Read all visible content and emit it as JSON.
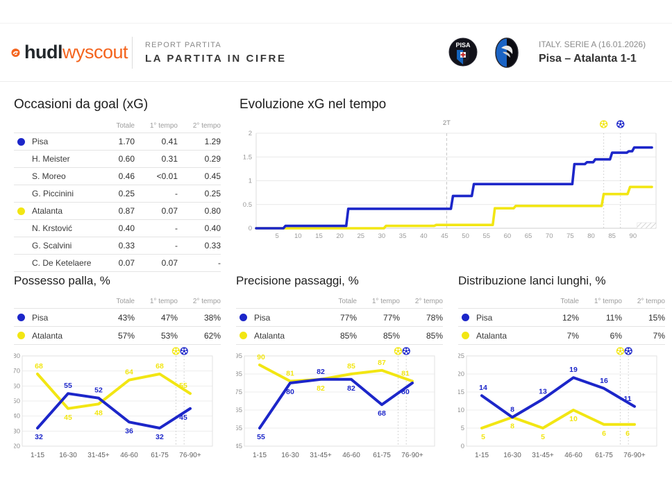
{
  "colors": {
    "pisa": "#1c26c9",
    "atalanta": "#f2e613",
    "brand_orange": "#f4641e"
  },
  "header": {
    "brand": {
      "hudl": "hudl",
      "wyscout": "wyscout"
    },
    "report_label": "REPORT PARTITA",
    "report_title": "LA PARTITA IN CIFRE",
    "competition": "ITALY. SERIE A (16.01.2026)",
    "match": "Pisa – Atalanta 1-1",
    "home_badge_text": "PISA"
  },
  "sections": {
    "xg": {
      "title": "Occasioni da goal (xG)",
      "columns": [
        "Totale",
        "1° tempo",
        "2° tempo"
      ],
      "rows": [
        {
          "name": "Pisa",
          "team": "pisa",
          "values": [
            "1.70",
            "0.41",
            "1.29"
          ]
        },
        {
          "name": "H. Meister",
          "values": [
            "0.60",
            "0.31",
            "0.29"
          ]
        },
        {
          "name": "S. Moreo",
          "values": [
            "0.46",
            "<0.01",
            "0.45"
          ]
        },
        {
          "name": "G. Piccinini",
          "values": [
            "0.25",
            "-",
            "0.25"
          ]
        },
        {
          "name": "Atalanta",
          "team": "atalanta",
          "values": [
            "0.87",
            "0.07",
            "0.80"
          ]
        },
        {
          "name": "N. Krstović",
          "values": [
            "0.40",
            "-",
            "0.40"
          ]
        },
        {
          "name": "G. Scalvini",
          "values": [
            "0.33",
            "-",
            "0.33"
          ]
        },
        {
          "name": "C. De Ketelaere",
          "values": [
            "0.07",
            "0.07",
            "-"
          ]
        }
      ]
    },
    "possesso": {
      "columns": [
        "Totale",
        "1° tempo",
        "2° tempo"
      ],
      "rows": [
        {
          "name": "Pisa",
          "team": "pisa",
          "values": [
            "43%",
            "47%",
            "38%"
          ]
        },
        {
          "name": "Atalanta",
          "team": "atalanta",
          "values": [
            "57%",
            "53%",
            "62%"
          ]
        }
      ]
    },
    "precisione": {
      "columns": [
        "Totale",
        "1° tempo",
        "2° tempo"
      ],
      "rows": [
        {
          "name": "Pisa",
          "team": "pisa",
          "values": [
            "77%",
            "77%",
            "78%"
          ]
        },
        {
          "name": "Atalanta",
          "team": "atalanta",
          "values": [
            "85%",
            "85%",
            "85%"
          ]
        }
      ]
    },
    "lanci": {
      "columns": [
        "Totale",
        "1° tempo",
        "2° tempo"
      ],
      "rows": [
        {
          "name": "Pisa",
          "team": "pisa",
          "values": [
            "12%",
            "11%",
            "15%"
          ]
        },
        {
          "name": "Atalanta",
          "team": "atalanta",
          "values": [
            "7%",
            "6%",
            "7%"
          ]
        }
      ]
    }
  },
  "chart_data": [
    {
      "id": "xg_evolution",
      "type": "line",
      "variant": "step",
      "title": "Evoluzione xG nel tempo",
      "xlim": [
        0,
        95.5
      ],
      "x_ticks": [
        5,
        10,
        15,
        20,
        25,
        30,
        35,
        40,
        45,
        50,
        55,
        60,
        65,
        70,
        75,
        80,
        85,
        90
      ],
      "ylim": [
        0,
        2
      ],
      "y_ticks": [
        0,
        0.5,
        1,
        1.5,
        2
      ],
      "grid": true,
      "halftime_marker": {
        "minute": 45.5,
        "label": "2T"
      },
      "goal_markers": [
        {
          "minute": 83,
          "team": "atalanta"
        },
        {
          "minute": 87,
          "team": "pisa"
        }
      ],
      "extra_time_hatch_start": 91,
      "series": [
        {
          "name": "Pisa",
          "team": "pisa",
          "points": [
            [
              0,
              0
            ],
            [
              6.5,
              0
            ],
            [
              7,
              0.05
            ],
            [
              21.5,
              0.05
            ],
            [
              22,
              0.41
            ],
            [
              46.5,
              0.41
            ],
            [
              47,
              0.68
            ],
            [
              51.5,
              0.68
            ],
            [
              52,
              0.93
            ],
            [
              75.5,
              0.93
            ],
            [
              76,
              1.35
            ],
            [
              78.5,
              1.35
            ],
            [
              79,
              1.39
            ],
            [
              80.5,
              1.39
            ],
            [
              81,
              1.45
            ],
            [
              84.5,
              1.45
            ],
            [
              85,
              1.59
            ],
            [
              88.5,
              1.59
            ],
            [
              89,
              1.62
            ],
            [
              89.8,
              1.62
            ],
            [
              90.3,
              1.7
            ],
            [
              94.5,
              1.7
            ]
          ]
        },
        {
          "name": "Atalanta",
          "team": "atalanta",
          "points": [
            [
              0,
              0
            ],
            [
              30.5,
              0
            ],
            [
              31,
              0.05
            ],
            [
              42.5,
              0.05
            ],
            [
              43,
              0.07
            ],
            [
              56.5,
              0.07
            ],
            [
              57,
              0.42
            ],
            [
              61.5,
              0.42
            ],
            [
              62,
              0.47
            ],
            [
              82.5,
              0.47
            ],
            [
              83,
              0.72
            ],
            [
              88.7,
              0.72
            ],
            [
              89.3,
              0.87
            ],
            [
              94.5,
              0.87
            ]
          ]
        }
      ]
    },
    {
      "id": "possession_by_interval",
      "type": "line",
      "title": "Possesso palla, %",
      "categories": [
        "1-15",
        "16-30",
        "31-45+",
        "46-60",
        "61-75",
        "76-90+"
      ],
      "ylim": [
        20,
        80
      ],
      "y_ticks": [
        20,
        30,
        40,
        50,
        60,
        70,
        80
      ],
      "grid": true,
      "goal_markers": [
        {
          "minute": 83,
          "team": "atalanta"
        },
        {
          "minute": 87,
          "team": "pisa"
        }
      ],
      "series": [
        {
          "name": "Pisa",
          "team": "pisa",
          "values": [
            32,
            55,
            52,
            36,
            32,
            45
          ]
        },
        {
          "name": "Atalanta",
          "team": "atalanta",
          "values": [
            68,
            45,
            48,
            64,
            68,
            55
          ]
        }
      ]
    },
    {
      "id": "passing_accuracy_by_interval",
      "type": "line",
      "title": "Precisione passaggi, %",
      "categories": [
        "1-15",
        "16-30",
        "31-45+",
        "46-60",
        "61-75",
        "76-90+"
      ],
      "ylim": [
        45,
        95
      ],
      "y_ticks": [
        45,
        55,
        65,
        75,
        85,
        95
      ],
      "grid": true,
      "goal_markers": [
        {
          "minute": 83,
          "team": "atalanta"
        },
        {
          "minute": 87,
          "team": "pisa"
        }
      ],
      "series": [
        {
          "name": "Pisa",
          "team": "pisa",
          "values": [
            55,
            80,
            82,
            82,
            68,
            80
          ]
        },
        {
          "name": "Atalanta",
          "team": "atalanta",
          "values": [
            90,
            81,
            82,
            85,
            87,
            81
          ]
        }
      ]
    },
    {
      "id": "long_passes_by_interval",
      "type": "line",
      "title": "Distribuzione lanci lunghi, %",
      "categories": [
        "1-15",
        "16-30",
        "31-45+",
        "46-60",
        "61-75",
        "76-90+"
      ],
      "ylim": [
        0,
        25
      ],
      "y_ticks": [
        0,
        5,
        10,
        15,
        20,
        25
      ],
      "grid": true,
      "goal_markers": [
        {
          "minute": 83,
          "team": "atalanta"
        },
        {
          "minute": 87,
          "team": "pisa"
        }
      ],
      "series": [
        {
          "name": "Pisa",
          "team": "pisa",
          "values": [
            14,
            8,
            13,
            19,
            16,
            11
          ]
        },
        {
          "name": "Atalanta",
          "team": "atalanta",
          "values": [
            5,
            8,
            5,
            10,
            6,
            6
          ]
        }
      ]
    }
  ]
}
